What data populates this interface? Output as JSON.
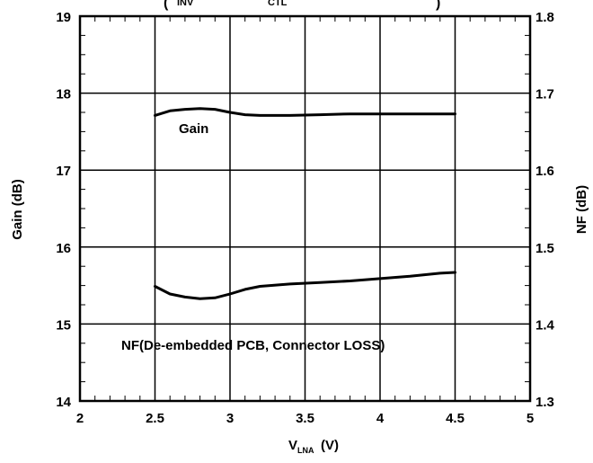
{
  "chart_data": {
    "type": "line",
    "title_fragments": {
      "left": "INV",
      "mid": "CTL",
      "open_paren": "(",
      "close_paren": ")"
    },
    "xlabel": {
      "main": "V",
      "sub": "LNA",
      "unit": "(V)"
    },
    "ylabel_left": "Gain (dB)",
    "ylabel_right": "NF (dB)",
    "xlim": [
      2,
      5
    ],
    "ylim_left": [
      14,
      19
    ],
    "ylim_right": [
      1.3,
      1.8
    ],
    "x_ticks": [
      "2",
      "2.5",
      "3",
      "3.5",
      "4",
      "4.5",
      "5"
    ],
    "y_ticks_left": [
      "14",
      "15",
      "16",
      "17",
      "18",
      "19"
    ],
    "y_ticks_right": [
      "1.3",
      "1.4",
      "1.5",
      "1.6",
      "1.7",
      "1.8"
    ],
    "grid": true,
    "series": [
      {
        "name": "Gain",
        "axis": "left",
        "x": [
          2.5,
          2.6,
          2.7,
          2.8,
          2.9,
          3.0,
          3.1,
          3.2,
          3.4,
          3.6,
          3.8,
          4.0,
          4.2,
          4.5
        ],
        "y": [
          17.71,
          17.77,
          17.79,
          17.8,
          17.79,
          17.75,
          17.72,
          17.71,
          17.71,
          17.72,
          17.73,
          17.73,
          17.73,
          17.73
        ]
      },
      {
        "name": "NF(De-embedded PCB, Connector LOSS)",
        "axis": "right",
        "x": [
          2.5,
          2.6,
          2.7,
          2.8,
          2.9,
          3.0,
          3.1,
          3.2,
          3.4,
          3.6,
          3.8,
          4.0,
          4.2,
          4.4,
          4.5
        ],
        "y": [
          1.449,
          1.439,
          1.435,
          1.433,
          1.434,
          1.439,
          1.445,
          1.449,
          1.452,
          1.454,
          1.456,
          1.459,
          1.462,
          1.466,
          1.467
        ]
      }
    ]
  }
}
